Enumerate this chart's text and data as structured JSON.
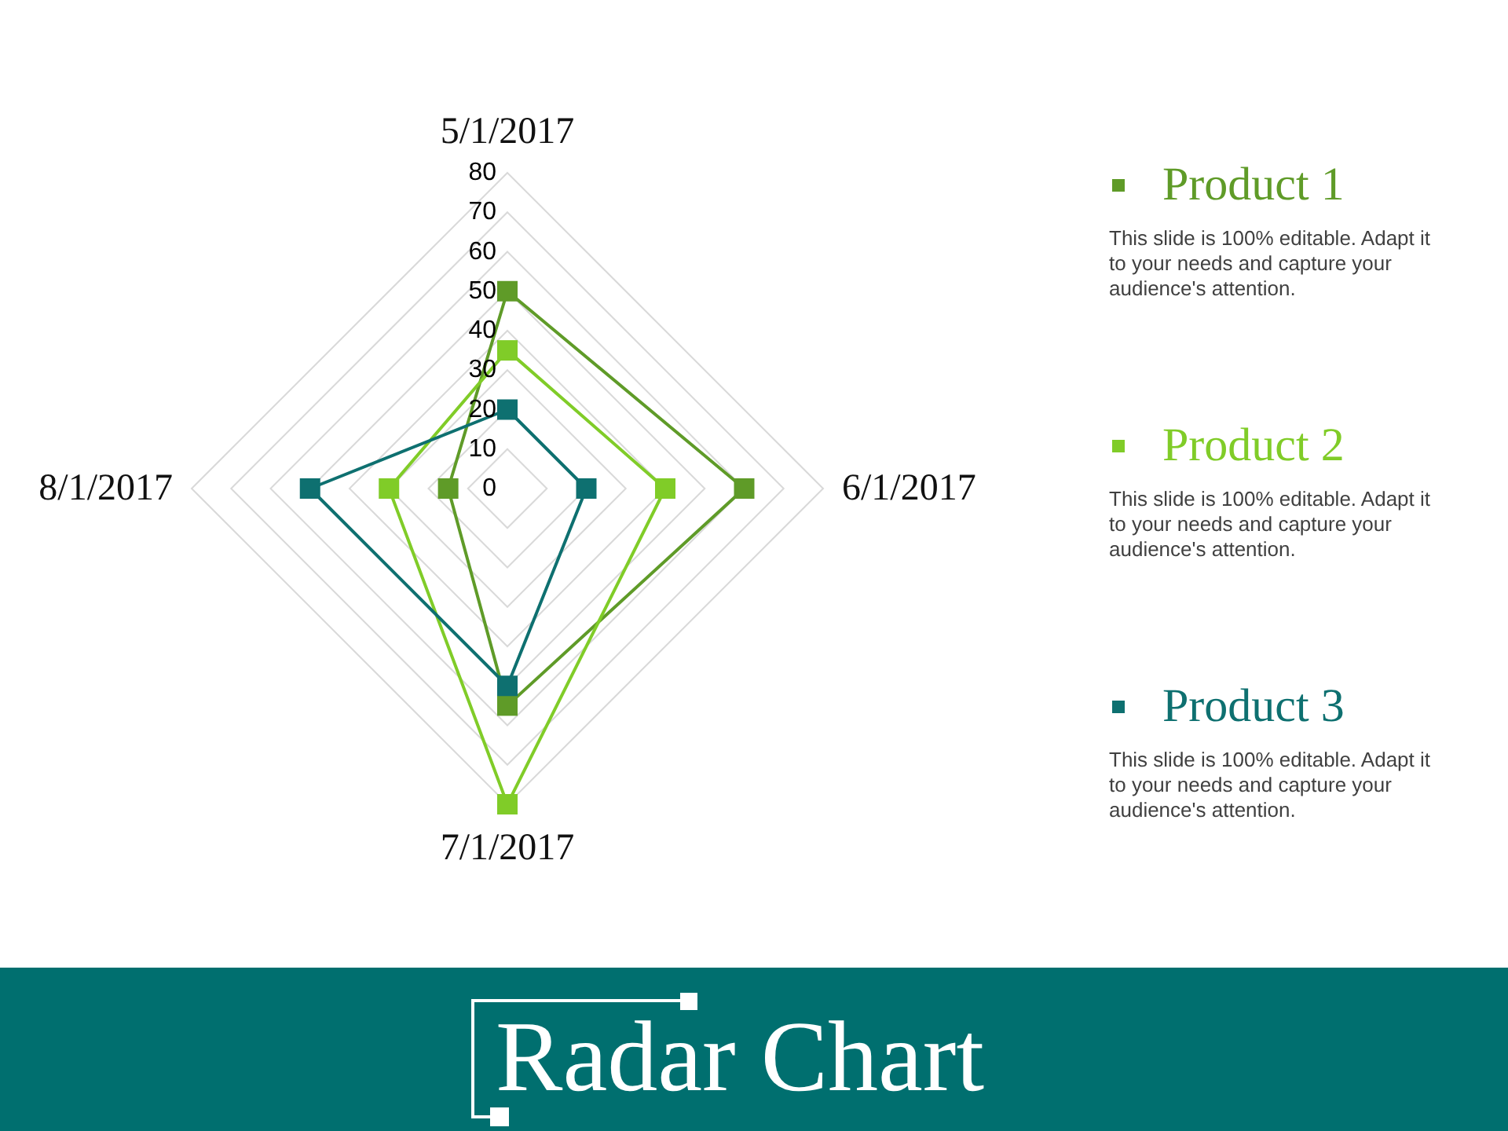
{
  "chart_data": {
    "type": "radar",
    "title": "Radar Chart",
    "categories": [
      "5/1/2017",
      "6/1/2017",
      "7/1/2017",
      "8/1/2017"
    ],
    "series": [
      {
        "name": "Product 1",
        "color": "#5f9b28",
        "values": [
          50,
          60,
          55,
          15
        ]
      },
      {
        "name": "Product 2",
        "color": "#80cc28",
        "values": [
          35,
          40,
          80,
          30
        ]
      },
      {
        "name": "Product 3",
        "color": "#0e7070",
        "values": [
          20,
          20,
          50,
          50
        ]
      }
    ],
    "ylim": [
      0,
      80
    ],
    "yticks": [
      0,
      10,
      20,
      30,
      40,
      50,
      60,
      70,
      80
    ],
    "grid": true,
    "legend": "right",
    "marker": "square",
    "line_style": "solid",
    "annotations": [
      "This slide is 100% editable. Adapt it to your needs and capture your audience's attention.",
      "This slide is 100% editable. Adapt it to your needs and capture your audience's attention.",
      "This slide is 100% editable. Adapt it to your needs and capture your audience's attention."
    ]
  }
}
